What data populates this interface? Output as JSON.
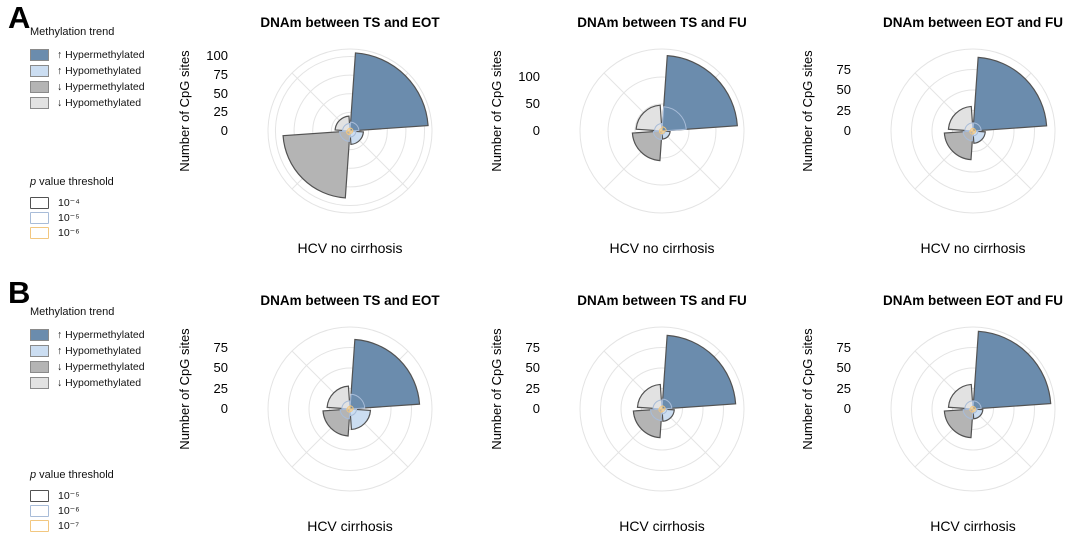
{
  "colors": {
    "hyper_up": "#6b8cad",
    "hypo_up": "#cbddf1",
    "hyper_down": "#b4b4b4",
    "hypo_down": "#e2e2e2",
    "wedge_outline": "#525252",
    "grid": "#e4e4e4",
    "p2_outline": "#a8bcd8",
    "p3_outline": "#f2c780"
  },
  "panels": [
    {
      "label": "A",
      "legend_title": "Methylation trend",
      "legend_items": [
        {
          "label": "↑ Hypermethylated",
          "color": "#6b8cad"
        },
        {
          "label": "↑ Hypomethylated",
          "color": "#cbddf1"
        },
        {
          "label": "↓ Hypermethylated",
          "color": "#b4b4b4"
        },
        {
          "label": "↓ Hypomethylated",
          "color": "#e2e2e2"
        }
      ],
      "pvalue_title_p": "p",
      "pvalue_title_rest": " value threshold",
      "pvalue_items": [
        {
          "label": "10⁻⁴",
          "border": "#525252"
        },
        {
          "label": "10⁻⁵",
          "border": "#a8bcd8"
        },
        {
          "label": "10⁻⁶",
          "border": "#f2c780"
        }
      ]
    },
    {
      "label": "B",
      "legend_title": "Methylation trend",
      "legend_items": [
        {
          "label": "↑ Hypermethylated",
          "color": "#6b8cad"
        },
        {
          "label": "↑ Hypomethylated",
          "color": "#cbddf1"
        },
        {
          "label": "↓ Hypermethylated",
          "color": "#b4b4b4"
        },
        {
          "label": "↓ Hypomethylated",
          "color": "#e2e2e2"
        }
      ],
      "pvalue_title_p": "p",
      "pvalue_title_rest": " value threshold",
      "pvalue_items": [
        {
          "label": "10⁻⁵",
          "border": "#525252"
        },
        {
          "label": "10⁻⁶",
          "border": "#a8bcd8"
        },
        {
          "label": "10⁻⁷",
          "border": "#f2c780"
        }
      ]
    }
  ],
  "chart_data": [
    {
      "type": "polar_bar",
      "panel": "A",
      "title": "DNAm between TS and EOT",
      "xlabel": "HCV no cirrhosis",
      "ylabel": "Number of CpG sites",
      "yticks": [
        100,
        75,
        50,
        25,
        0
      ],
      "ylim": [
        0,
        110
      ],
      "grid": true,
      "categories": [
        "↑ Hypermethylated",
        "↑ Hypomethylated",
        "↓ Hypermethylated",
        "↓ Hypomethylated"
      ],
      "quadrants": [
        "top-right",
        "bottom-right",
        "bottom-left",
        "top-left"
      ],
      "category_colors": [
        "#6b8cad",
        "#cbddf1",
        "#b4b4b4",
        "#e2e2e2"
      ],
      "series": [
        {
          "name": "p<10⁻⁴",
          "values": [
            105,
            18,
            90,
            20
          ]
        },
        {
          "name": "p<10⁻⁵",
          "values": [
            12,
            8,
            14,
            10
          ]
        },
        {
          "name": "p<10⁻⁶",
          "values": [
            4,
            2,
            5,
            3
          ]
        }
      ]
    },
    {
      "type": "polar_bar",
      "panel": "A",
      "title": "DNAm between TS and FU",
      "xlabel": "HCV no cirrhosis",
      "ylabel": "Number of CpG sites",
      "yticks": [
        100,
        50,
        0
      ],
      "ylim": [
        0,
        152
      ],
      "grid": true,
      "categories": [
        "↑ Hypermethylated",
        "↑ Hypomethylated",
        "↓ Hypermethylated",
        "↓ Hypomethylated"
      ],
      "quadrants": [
        "top-right",
        "bottom-right",
        "bottom-left",
        "top-left"
      ],
      "category_colors": [
        "#6b8cad",
        "#cbddf1",
        "#b4b4b4",
        "#e2e2e2"
      ],
      "series": [
        {
          "name": "p<10⁻⁴",
          "values": [
            140,
            15,
            55,
            48
          ]
        },
        {
          "name": "p<10⁻⁵",
          "values": [
            45,
            6,
            16,
            14
          ]
        },
        {
          "name": "p<10⁻⁶",
          "values": [
            8,
            2,
            5,
            4
          ]
        }
      ]
    },
    {
      "type": "polar_bar",
      "panel": "A",
      "title": "DNAm between EOT and FU",
      "xlabel": "HCV no cirrhosis",
      "ylabel": "Number of CpG sites",
      "yticks": [
        75,
        50,
        25,
        0
      ],
      "ylim": [
        0,
        100
      ],
      "grid": true,
      "categories": [
        "↑ Hypermethylated",
        "↑ Hypomethylated",
        "↓ Hypermethylated",
        "↓ Hypomethylated"
      ],
      "quadrants": [
        "top-right",
        "bottom-right",
        "bottom-left",
        "top-left"
      ],
      "category_colors": [
        "#6b8cad",
        "#cbddf1",
        "#b4b4b4",
        "#e2e2e2"
      ],
      "series": [
        {
          "name": "p<10⁻⁴",
          "values": [
            90,
            15,
            35,
            30
          ]
        },
        {
          "name": "p<10⁻⁵",
          "values": [
            10,
            6,
            12,
            10
          ]
        },
        {
          "name": "p<10⁻⁶",
          "values": [
            3,
            2,
            4,
            3
          ]
        }
      ]
    },
    {
      "type": "polar_bar",
      "panel": "B",
      "title": "DNAm between TS and EOT",
      "xlabel": "HCV cirrhosis",
      "ylabel": "Number of CpG sites",
      "yticks": [
        75,
        50,
        25,
        0
      ],
      "ylim": [
        0,
        100
      ],
      "grid": true,
      "categories": [
        "↑ Hypermethylated",
        "↑ Hypomethylated",
        "↓ Hypermethylated",
        "↓ Hypomethylated"
      ],
      "quadrants": [
        "top-right",
        "bottom-right",
        "bottom-left",
        "top-left"
      ],
      "category_colors": [
        "#6b8cad",
        "#cbddf1",
        "#b4b4b4",
        "#e2e2e2"
      ],
      "series": [
        {
          "name": "p<10⁻⁵",
          "values": [
            85,
            25,
            33,
            28
          ]
        },
        {
          "name": "p<10⁻⁶",
          "values": [
            18,
            8,
            12,
            10
          ]
        },
        {
          "name": "p<10⁻⁷",
          "values": [
            4,
            2,
            4,
            3
          ]
        }
      ]
    },
    {
      "type": "polar_bar",
      "panel": "B",
      "title": "DNAm between TS and FU",
      "xlabel": "HCV cirrhosis",
      "ylabel": "Number of CpG sites",
      "yticks": [
        75,
        50,
        25,
        0
      ],
      "ylim": [
        0,
        100
      ],
      "grid": true,
      "categories": [
        "↑ Hypermethylated",
        "↑ Hypomethylated",
        "↓ Hypermethylated",
        "↓ Hypomethylated"
      ],
      "quadrants": [
        "top-right",
        "bottom-right",
        "bottom-left",
        "top-left"
      ],
      "category_colors": [
        "#6b8cad",
        "#cbddf1",
        "#b4b4b4",
        "#e2e2e2"
      ],
      "series": [
        {
          "name": "p<10⁻⁵",
          "values": [
            90,
            15,
            35,
            30
          ]
        },
        {
          "name": "p<10⁻⁶",
          "values": [
            12,
            6,
            14,
            11
          ]
        },
        {
          "name": "p<10⁻⁷",
          "values": [
            4,
            2,
            4,
            3
          ]
        }
      ]
    },
    {
      "type": "polar_bar",
      "panel": "B",
      "title": "DNAm between EOT and FU",
      "xlabel": "HCV cirrhosis",
      "ylabel": "Number of CpG sites",
      "yticks": [
        75,
        50,
        25,
        0
      ],
      "ylim": [
        0,
        100
      ],
      "grid": true,
      "categories": [
        "↑ Hypermethylated",
        "↑ Hypomethylated",
        "↓ Hypermethylated",
        "↓ Hypomethylated"
      ],
      "quadrants": [
        "top-right",
        "bottom-right",
        "bottom-left",
        "top-left"
      ],
      "category_colors": [
        "#6b8cad",
        "#cbddf1",
        "#b4b4b4",
        "#e2e2e2"
      ],
      "series": [
        {
          "name": "p<10⁻⁵",
          "values": [
            95,
            12,
            35,
            30
          ]
        },
        {
          "name": "p<10⁻⁶",
          "values": [
            10,
            5,
            12,
            10
          ]
        },
        {
          "name": "p<10⁻⁷",
          "values": [
            3,
            2,
            4,
            3
          ]
        }
      ]
    }
  ]
}
